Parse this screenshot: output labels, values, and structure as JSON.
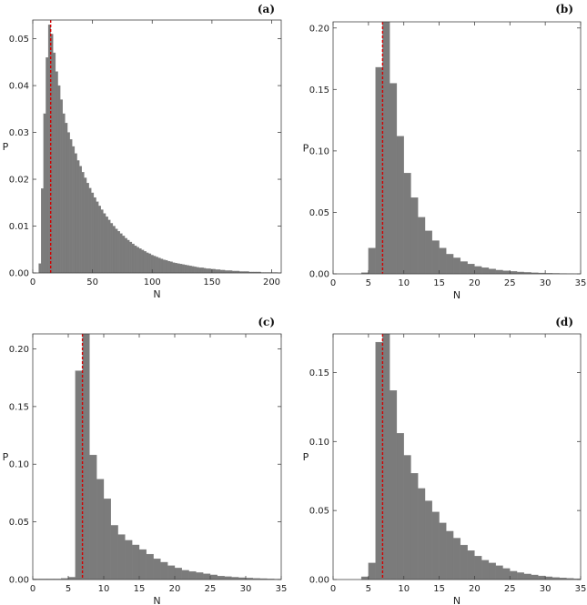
{
  "figure": {
    "panel_labels": [
      "(a)",
      "(b)",
      "(c)",
      "(d)"
    ]
  },
  "colors": {
    "bar": "#7b7b7b",
    "marker": "#d40000",
    "axis": "#444444"
  },
  "chart_data": [
    {
      "type": "bar",
      "panel": "(a)",
      "xlabel": "N",
      "ylabel": "P",
      "xlim": [
        0,
        208
      ],
      "ylim": [
        0,
        0.054
      ],
      "xticks": [
        0,
        50,
        100,
        150,
        200
      ],
      "xtick_labels": [
        "0",
        "50",
        "100",
        "150",
        "200"
      ],
      "yticks": [
        0.0,
        0.01,
        0.02,
        0.03,
        0.04,
        0.05
      ],
      "ytick_labels": [
        "0.00",
        "0.01",
        "0.02",
        "0.03",
        "0.04",
        "0.05"
      ],
      "bin_width": 2,
      "bins_start": 5,
      "values": [
        0.002,
        0.018,
        0.034,
        0.046,
        0.053,
        0.051,
        0.047,
        0.043,
        0.04,
        0.037,
        0.034,
        0.032,
        0.03,
        0.0285,
        0.027,
        0.0255,
        0.024,
        0.0228,
        0.0215,
        0.0203,
        0.0192,
        0.0181,
        0.0171,
        0.0161,
        0.0152,
        0.0143,
        0.0135,
        0.0127,
        0.012,
        0.0113,
        0.0106,
        0.01,
        0.0094,
        0.0089,
        0.0084,
        0.0079,
        0.0074,
        0.007,
        0.0066,
        0.0062,
        0.0058,
        0.0055,
        0.0052,
        0.0049,
        0.0046,
        0.0043,
        0.0041,
        0.0038,
        0.0036,
        0.0034,
        0.0032,
        0.003,
        0.0028,
        0.0027,
        0.0025,
        0.0024,
        0.0022,
        0.0021,
        0.002,
        0.0019,
        0.0018,
        0.0017,
        0.0016,
        0.0015,
        0.0014,
        0.0013,
        0.0012,
        0.0011,
        0.0011,
        0.001,
        0.0009,
        0.0009,
        0.0008,
        0.0008,
        0.0007,
        0.0007,
        0.0006,
        0.0006,
        0.0005,
        0.0005,
        0.0005,
        0.0004,
        0.0004,
        0.0004,
        0.0003,
        0.0003,
        0.0003,
        0.0003,
        0.0002,
        0.0002,
        0.0002,
        0.0002,
        0.0002,
        0.0001,
        0.0001,
        0.0001,
        0.0001,
        0.0001,
        0.0001,
        0.0001
      ],
      "marker_x": 15
    },
    {
      "type": "bar",
      "panel": "(b)",
      "xlabel": "N",
      "ylabel": "P",
      "xlim": [
        0,
        35
      ],
      "ylim": [
        0,
        0.205
      ],
      "xticks": [
        0,
        5,
        10,
        15,
        20,
        25,
        30,
        35
      ],
      "xtick_labels": [
        "0",
        "5",
        "10",
        "15",
        "20",
        "25",
        "30",
        "35"
      ],
      "yticks": [
        0.0,
        0.05,
        0.1,
        0.15,
        0.2
      ],
      "ytick_labels": [
        "0.00",
        "0.05",
        "0.10",
        "0.15",
        "0.20"
      ],
      "bin_width": 1,
      "bins_start": 4,
      "values": [
        0.001,
        0.021,
        0.168,
        0.205,
        0.155,
        0.112,
        0.082,
        0.062,
        0.046,
        0.035,
        0.027,
        0.021,
        0.016,
        0.013,
        0.01,
        0.008,
        0.006,
        0.005,
        0.004,
        0.003,
        0.0025,
        0.002,
        0.0015,
        0.0012,
        0.0009,
        0.0007,
        0.0005,
        0.0004,
        0.0003,
        0.0002,
        0.0001
      ],
      "marker_x": 7
    },
    {
      "type": "bar",
      "panel": "(c)",
      "xlabel": "N",
      "ylabel": "P",
      "xlim": [
        0,
        35
      ],
      "ylim": [
        0,
        0.213
      ],
      "xticks": [
        0,
        5,
        10,
        15,
        20,
        25,
        30,
        35
      ],
      "xtick_labels": [
        "0",
        "5",
        "10",
        "15",
        "20",
        "25",
        "30",
        "35"
      ],
      "yticks": [
        0.0,
        0.05,
        0.1,
        0.15,
        0.2
      ],
      "ytick_labels": [
        "0.00",
        "0.05",
        "0.10",
        "0.15",
        "0.20"
      ],
      "bin_width": 1,
      "bins_start": 0,
      "values": [
        0.0005,
        0.0005,
        0.0005,
        0.0005,
        0.001,
        0.002,
        0.181,
        0.213,
        0.108,
        0.087,
        0.07,
        0.047,
        0.039,
        0.034,
        0.03,
        0.026,
        0.022,
        0.018,
        0.015,
        0.012,
        0.01,
        0.008,
        0.007,
        0.006,
        0.005,
        0.004,
        0.003,
        0.0025,
        0.002,
        0.0016,
        0.0013,
        0.001,
        0.0008,
        0.0006,
        0.0004
      ],
      "marker_x": 7
    },
    {
      "type": "bar",
      "panel": "(d)",
      "xlabel": "N",
      "ylabel": "P",
      "xlim": [
        0,
        35
      ],
      "ylim": [
        0,
        0.178
      ],
      "xticks": [
        0,
        5,
        10,
        15,
        20,
        25,
        30,
        35
      ],
      "xtick_labels": [
        "0",
        "5",
        "10",
        "15",
        "20",
        "25",
        "30",
        "35"
      ],
      "yticks": [
        0.0,
        0.05,
        0.1,
        0.15
      ],
      "ytick_labels": [
        "0.00",
        "0.05",
        "0.10",
        "0.15"
      ],
      "bin_width": 1,
      "bins_start": 4,
      "values": [
        0.002,
        0.012,
        0.172,
        0.178,
        0.137,
        0.106,
        0.09,
        0.077,
        0.066,
        0.057,
        0.049,
        0.041,
        0.035,
        0.03,
        0.025,
        0.021,
        0.017,
        0.014,
        0.012,
        0.01,
        0.008,
        0.006,
        0.005,
        0.004,
        0.0033,
        0.0026,
        0.002,
        0.0015,
        0.0012,
        0.0009,
        0.0006
      ],
      "marker_x": 7
    }
  ]
}
